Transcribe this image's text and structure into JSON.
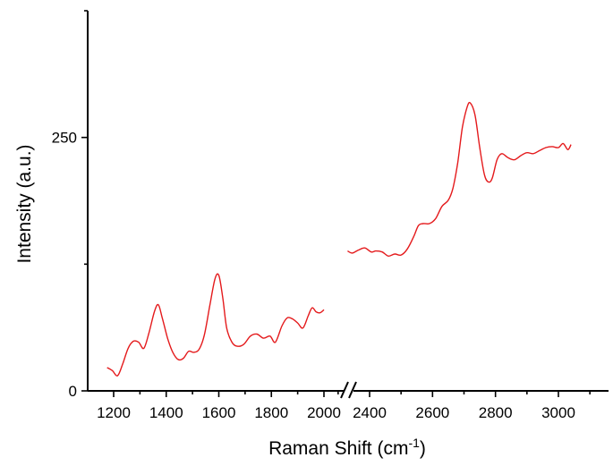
{
  "chart_data": {
    "type": "line",
    "xlabel_main": "Raman Shift (cm",
    "xlabel_sup": "-1",
    "xlabel_end": ")",
    "ylabel": "Intensity (a.u.)",
    "ylim": [
      0,
      375
    ],
    "yticks": [
      0,
      250
    ],
    "y_minor_ticks": [
      125,
      375
    ],
    "grid": false,
    "legend": "none",
    "x_break": [
      2000,
      2300
    ],
    "xticks_left": [
      1200,
      1400,
      1600,
      1800,
      2000
    ],
    "xticks_right": [
      2400,
      2600,
      2800,
      3000
    ],
    "series": [
      {
        "color": "#e41a1c",
        "segments": [
          {
            "x": [
              1175,
              1195,
              1215,
              1235,
              1255,
              1275,
              1295,
              1315,
              1335,
              1355,
              1370,
              1385,
              1405,
              1425,
              1445,
              1465,
              1485,
              1505,
              1525,
              1545,
              1565,
              1585,
              1600,
              1615,
              1630,
              1650,
              1670,
              1695,
              1720,
              1745,
              1770,
              1795,
              1815,
              1840,
              1860,
              1880,
              1900,
              1920,
              1940,
              1955,
              1970,
              1985,
              2000
            ],
            "y": [
              23,
              20,
              15,
              27,
              42,
              49,
              48,
              42,
              58,
              78,
              85,
              72,
              52,
              38,
              31,
              32,
              39,
              38,
              41,
              55,
              83,
              110,
              114,
              92,
              62,
              48,
              44,
              46,
              54,
              56,
              52,
              54,
              48,
              64,
              72,
              71,
              67,
              62,
              74,
              82,
              78,
              77,
              80
            ]
          },
          {
            "x": [
              2330,
              2345,
              2365,
              2385,
              2405,
              2420,
              2440,
              2460,
              2480,
              2500,
              2520,
              2540,
              2555,
              2570,
              2590,
              2610,
              2630,
              2650,
              2665,
              2680,
              2695,
              2710,
              2720,
              2735,
              2750,
              2765,
              2778,
              2790,
              2805,
              2820,
              2840,
              2860,
              2880,
              2900,
              2920,
              2940,
              2960,
              2980,
              3000,
              3015,
              3030,
              3040
            ],
            "y": [
              138,
              136,
              139,
              141,
              137,
              138,
              137,
              133,
              135,
              134,
              140,
              152,
              163,
              165,
              165,
              170,
              182,
              188,
              200,
              225,
              260,
              280,
              284,
              272,
              240,
              213,
              206,
              210,
              228,
              234,
              230,
              228,
              232,
              235,
              234,
              237,
              240,
              241,
              240,
              244,
              238,
              243
            ]
          }
        ]
      }
    ]
  }
}
